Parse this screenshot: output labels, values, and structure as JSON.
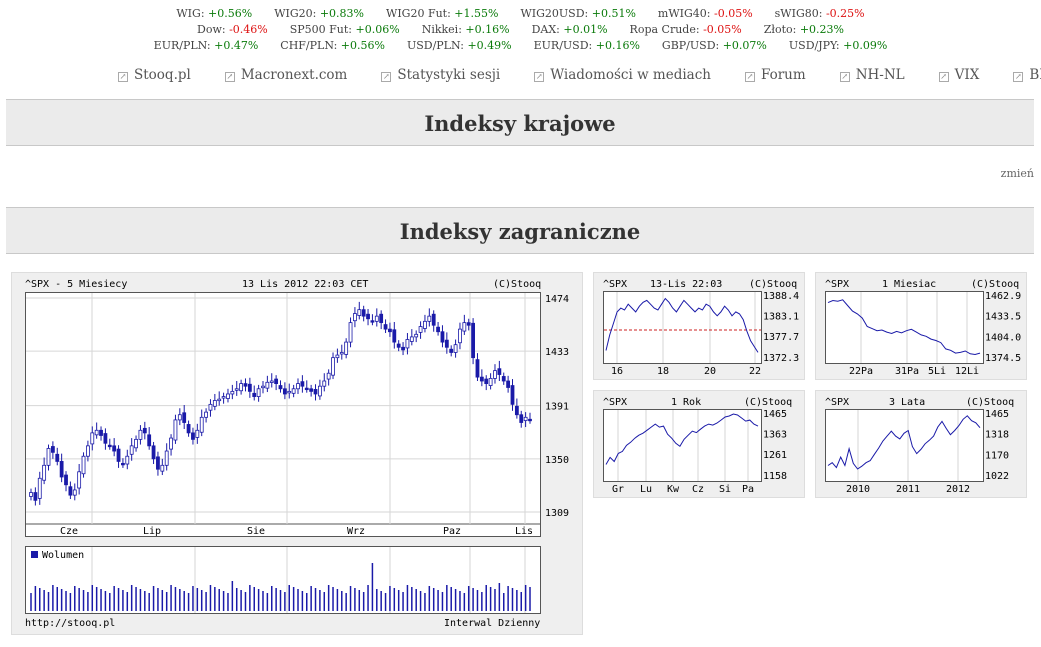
{
  "ticker_rows": [
    [
      {
        "name": "WIG:",
        "value": "+0.56%",
        "dir": "pos"
      },
      {
        "name": "WIG20:",
        "value": "+0.83%",
        "dir": "pos"
      },
      {
        "name": "WIG20 Fut:",
        "value": "+1.55%",
        "dir": "pos"
      },
      {
        "name": "WIG20USD:",
        "value": "+0.51%",
        "dir": "pos"
      },
      {
        "name": "mWIG40:",
        "value": "-0.05%",
        "dir": "neg"
      },
      {
        "name": "sWIG80:",
        "value": "-0.25%",
        "dir": "neg"
      }
    ],
    [
      {
        "name": "Dow:",
        "value": "-0.46%",
        "dir": "neg"
      },
      {
        "name": "SP500 Fut:",
        "value": "+0.06%",
        "dir": "pos"
      },
      {
        "name": "Nikkei:",
        "value": "+0.16%",
        "dir": "pos"
      },
      {
        "name": "DAX:",
        "value": "+0.01%",
        "dir": "pos"
      },
      {
        "name": "Ropa Crude:",
        "value": "-0.05%",
        "dir": "neg"
      },
      {
        "name": "Złoto:",
        "value": "+0.23%",
        "dir": "pos"
      }
    ],
    [
      {
        "name": "EUR/PLN:",
        "value": "+0.47%",
        "dir": "pos"
      },
      {
        "name": "CHF/PLN:",
        "value": "+0.56%",
        "dir": "pos"
      },
      {
        "name": "USD/PLN:",
        "value": "+0.49%",
        "dir": "pos"
      },
      {
        "name": "EUR/USD:",
        "value": "+0.16%",
        "dir": "pos"
      },
      {
        "name": "GBP/USD:",
        "value": "+0.07%",
        "dir": "pos"
      },
      {
        "name": "USD/JPY:",
        "value": "+0.09%",
        "dir": "pos"
      }
    ]
  ],
  "nav": [
    "Stooq.pl",
    "Macronext.com",
    "Statystyki sesji",
    "Wiadomości w mediach",
    "Forum",
    "NH-NL",
    "VIX",
    "BDI"
  ],
  "sections": {
    "domestic": "Indeksy krajowe",
    "foreign": "Indeksy zagraniczne"
  },
  "zmien": "zmień",
  "colors": {
    "series": "#1a1aa8",
    "ref_line": "#cc2222",
    "volume_legend": "#1a1aa8"
  },
  "chart_data": [
    {
      "type": "candlestick",
      "header": {
        "left": "^SPX - 5 Miesiecy",
        "center": "13 Lis 2012 22:03 CET",
        "right": "(C)Stooq"
      },
      "yticks": [
        "1474",
        "1433",
        "1391",
        "1350",
        "1309"
      ],
      "ylim": [
        1309,
        1474
      ],
      "xticks": [
        "Cze",
        "Lip",
        "Sie",
        "Wrz",
        "Paz",
        "Lis"
      ],
      "closes": [
        1324,
        1318,
        1335,
        1345,
        1358,
        1355,
        1348,
        1336,
        1330,
        1322,
        1326,
        1340,
        1352,
        1360,
        1370,
        1372,
        1368,
        1362,
        1360,
        1356,
        1348,
        1346,
        1352,
        1360,
        1365,
        1372,
        1370,
        1360,
        1350,
        1342,
        1345,
        1356,
        1366,
        1380,
        1384,
        1378,
        1370,
        1365,
        1372,
        1382,
        1386,
        1392,
        1395,
        1396,
        1398,
        1400,
        1402,
        1404,
        1408,
        1406,
        1402,
        1398,
        1404,
        1406,
        1409,
        1410,
        1408,
        1404,
        1400,
        1402,
        1404,
        1408,
        1406,
        1404,
        1402,
        1400,
        1406,
        1410,
        1416,
        1428,
        1430,
        1432,
        1440,
        1455,
        1462,
        1465,
        1460,
        1458,
        1456,
        1460,
        1455,
        1450,
        1448,
        1440,
        1436,
        1434,
        1442,
        1444,
        1446,
        1452,
        1456,
        1460,
        1453,
        1448,
        1440,
        1436,
        1432,
        1438,
        1450,
        1455,
        1453,
        1428,
        1413,
        1410,
        1408,
        1412,
        1418,
        1415,
        1410,
        1405,
        1392,
        1384,
        1378,
        1382,
        1380
      ],
      "volume_label": "Wolumen",
      "footer_left": "http://stooq.pl",
      "footer_right": "Interwal Dzienny"
    },
    {
      "type": "line",
      "header": {
        "left": "^SPX",
        "center": "13-Lis 22:03",
        "right": "(C)Stooq"
      },
      "yticks": [
        "1388.4",
        "1383.1",
        "1377.7",
        "1372.3"
      ],
      "ylim": [
        1372.3,
        1388.4
      ],
      "xticks": [
        "16",
        "18",
        "20",
        "22"
      ],
      "ref": 1379.3,
      "values": [
        1374,
        1378,
        1381,
        1384,
        1385,
        1384.5,
        1386,
        1385,
        1384,
        1385.5,
        1386.5,
        1387,
        1386,
        1385,
        1384.5,
        1386,
        1387.5,
        1386.5,
        1385,
        1384,
        1385.5,
        1387,
        1386,
        1385,
        1384,
        1385,
        1384.5,
        1386,
        1385.5,
        1384,
        1383,
        1384,
        1385.5,
        1384.5,
        1383,
        1384,
        1383.5,
        1382,
        1379,
        1376.5,
        1375,
        1373.5
      ]
    },
    {
      "type": "line",
      "header": {
        "left": "^SPX",
        "center": "1 Miesiac",
        "right": "(C)Stooq"
      },
      "yticks": [
        "1462.9",
        "1433.5",
        "1404.0",
        "1374.5"
      ],
      "ylim": [
        1374.5,
        1462.9
      ],
      "xticks": [
        "22Pa",
        "31Pa",
        "5Li",
        "12Li"
      ],
      "values": [
        1452,
        1455,
        1454,
        1456,
        1448,
        1440,
        1436,
        1430,
        1418,
        1415,
        1412,
        1413,
        1410,
        1408,
        1411,
        1409,
        1412,
        1414,
        1410,
        1406,
        1404,
        1400,
        1398,
        1395,
        1386,
        1384,
        1380,
        1381,
        1383,
        1379,
        1378,
        1380
      ]
    },
    {
      "type": "line",
      "header": {
        "left": "^SPX",
        "center": "1 Rok",
        "right": "(C)Stooq"
      },
      "yticks": [
        "1465",
        "1363",
        "1261",
        "1158"
      ],
      "ylim": [
        1158,
        1465
      ],
      "xticks": [
        "Gr",
        "Lu",
        "Kw",
        "Cz",
        "Si",
        "Pa"
      ],
      "values": [
        1210,
        1245,
        1225,
        1265,
        1275,
        1305,
        1320,
        1340,
        1355,
        1365,
        1380,
        1395,
        1410,
        1395,
        1400,
        1360,
        1340,
        1315,
        1300,
        1335,
        1355,
        1375,
        1368,
        1385,
        1400,
        1410,
        1405,
        1415,
        1430,
        1445,
        1450,
        1460,
        1455,
        1440,
        1425,
        1430,
        1410,
        1400
      ]
    },
    {
      "type": "line",
      "header": {
        "left": "^SPX",
        "center": "3 Lata",
        "right": "(C)Stooq"
      },
      "yticks": [
        "1465",
        "1318",
        "1170",
        "1022"
      ],
      "ylim": [
        1022,
        1465
      ],
      "xticks": [
        "2010",
        "2011",
        "2012"
      ],
      "values": [
        1090,
        1110,
        1075,
        1150,
        1090,
        1210,
        1105,
        1065,
        1085,
        1110,
        1125,
        1170,
        1215,
        1265,
        1300,
        1335,
        1300,
        1280,
        1320,
        1340,
        1225,
        1175,
        1205,
        1245,
        1270,
        1300,
        1365,
        1405,
        1355,
        1310,
        1340,
        1375,
        1420,
        1445,
        1410,
        1395,
        1360
      ]
    }
  ]
}
